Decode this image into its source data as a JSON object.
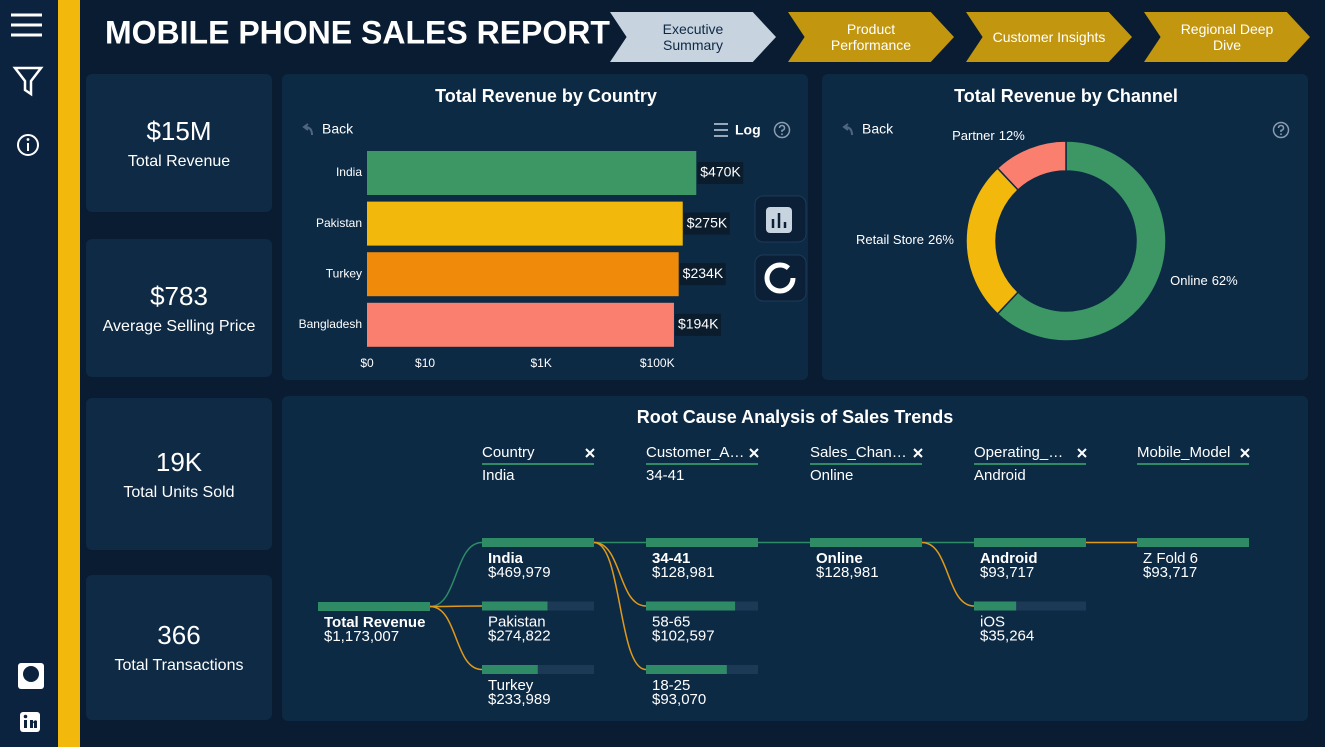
{
  "header": {
    "title": "MOBILE PHONE SALES REPORT"
  },
  "nav": [
    {
      "label": "Executive Summary",
      "active": true
    },
    {
      "label": "Product Performance"
    },
    {
      "label": "Customer Insights"
    },
    {
      "label": "Regional Deep Dive"
    }
  ],
  "kpis": [
    {
      "value": "$15M",
      "label": "Total Revenue"
    },
    {
      "value": "$783",
      "label": "Average Selling Price"
    },
    {
      "value": "19K",
      "label": "Total Units Sold"
    },
    {
      "value": "366",
      "label": "Total Transactions"
    }
  ],
  "chart_data": [
    {
      "type": "bar",
      "orientation": "horizontal",
      "title": "Total Revenue by Country",
      "categories": [
        "India",
        "Pakistan",
        "Turkey",
        "Bangladesh"
      ],
      "values": [
        469979,
        274822,
        233989,
        194000
      ],
      "value_labels": [
        "$470K",
        "$275K",
        "$234K",
        "$194K"
      ],
      "colors": [
        "#3c9765",
        "#f2b90c",
        "#f08a0a",
        "#fa7f6e"
      ],
      "log_scale": true,
      "xlim": [
        1,
        3000000
      ],
      "xticks": [
        {
          "value": 1,
          "label": "$0"
        },
        {
          "value": 10,
          "label": "$10"
        },
        {
          "value": 1000,
          "label": "$1K"
        },
        {
          "value": 100000,
          "label": "$100K"
        }
      ],
      "back_label": "Back",
      "log_label": "Log"
    },
    {
      "type": "pie",
      "donut": true,
      "title": "Total Revenue by Channel",
      "categories": [
        "Online",
        "Retail Store",
        "Partner"
      ],
      "values": [
        62,
        26,
        12
      ],
      "value_labels": [
        "62%",
        "26%",
        "12%"
      ],
      "colors": [
        "#3c9765",
        "#f2b90c",
        "#fa7f6e"
      ],
      "back_label": "Back"
    }
  ],
  "decomposition_tree": {
    "title": "Root Cause Analysis of Sales Trends",
    "columns": [
      {
        "field": "Country",
        "selection": "India"
      },
      {
        "field": "Customer_A…",
        "selection": "34-41"
      },
      {
        "field": "Sales_Chan…",
        "selection": "Online"
      },
      {
        "field": "Operating_…",
        "selection": "Android"
      },
      {
        "field": "Mobile_Model"
      }
    ],
    "levels": [
      [
        {
          "label": "Total Revenue",
          "value": 1173007,
          "value_label": "$1,173,007",
          "selected": true
        }
      ],
      [
        {
          "label": "India",
          "value": 469979,
          "value_label": "$469,979",
          "selected": true
        },
        {
          "label": "Pakistan",
          "value": 274822,
          "value_label": "$274,822"
        },
        {
          "label": "Turkey",
          "value": 233989,
          "value_label": "$233,989"
        }
      ],
      [
        {
          "label": "34-41",
          "value": 128981,
          "value_label": "$128,981",
          "selected": true
        },
        {
          "label": "58-65",
          "value": 102597,
          "value_label": "$102,597"
        },
        {
          "label": "18-25",
          "value": 93070,
          "value_label": "$93,070"
        }
      ],
      [
        {
          "label": "Online",
          "value": 128981,
          "value_label": "$128,981",
          "selected": true
        }
      ],
      [
        {
          "label": "Android",
          "value": 93717,
          "value_label": "$93,717",
          "selected": true
        },
        {
          "label": "iOS",
          "value": 35264,
          "value_label": "$35,264"
        }
      ],
      [
        {
          "label": "Z Fold 6",
          "value": 93717,
          "value_label": "$93,717"
        }
      ]
    ]
  }
}
